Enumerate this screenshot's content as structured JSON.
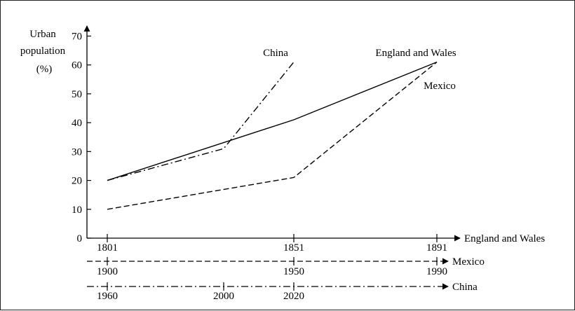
{
  "chart_data": {
    "type": "line",
    "ylabel_lines": [
      "Urban",
      "population",
      "(%)"
    ],
    "ylim": [
      0,
      70
    ],
    "y_ticks": [
      0,
      10,
      20,
      30,
      40,
      50,
      60,
      70
    ],
    "x_axes": [
      {
        "name": "England and Wales",
        "ticks": [
          1801,
          1851,
          1891
        ],
        "style": "solid"
      },
      {
        "name": "Mexico",
        "ticks": [
          1900,
          1950,
          1990
        ],
        "style": "dashed"
      },
      {
        "name": "China",
        "ticks": [
          1960,
          2000,
          2020
        ],
        "style": "dash-dot"
      }
    ],
    "series": [
      {
        "name": "England and Wales",
        "style": "solid",
        "x": [
          1801,
          1851,
          1891
        ],
        "y": [
          20,
          41,
          61
        ]
      },
      {
        "name": "Mexico",
        "style": "dashed",
        "x": [
          1900,
          1950,
          1990
        ],
        "y": [
          10,
          21,
          61
        ]
      },
      {
        "name": "China",
        "style": "dash-dot",
        "x": [
          1960,
          2000,
          2020
        ],
        "y": [
          20,
          31,
          61
        ]
      }
    ],
    "grid": false
  }
}
